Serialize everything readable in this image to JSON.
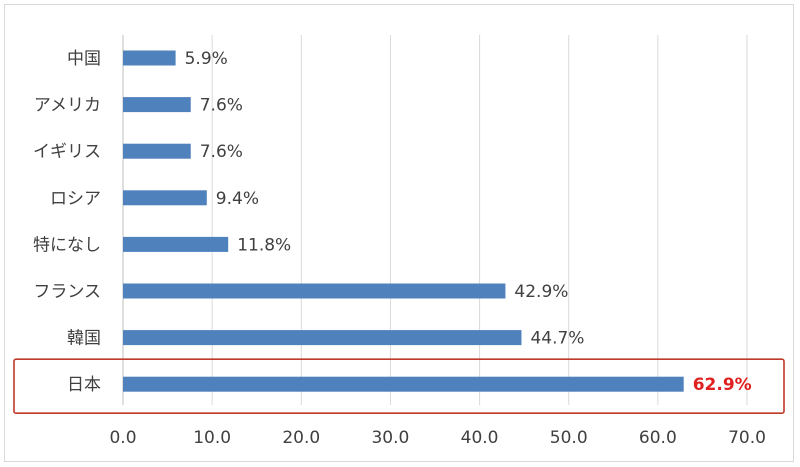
{
  "chart_data": {
    "type": "bar",
    "orientation": "horizontal",
    "categories": [
      "中国",
      "アメリカ",
      "イギリス",
      "ロシア",
      "特になし",
      "フランス",
      "韓国",
      "日本"
    ],
    "values": [
      5.9,
      7.6,
      7.6,
      9.4,
      11.8,
      42.9,
      44.7,
      62.9
    ],
    "value_labels": [
      "5.9%",
      "7.6%",
      "7.6%",
      "9.4%",
      "11.8%",
      "42.9%",
      "44.7%",
      "62.9%"
    ],
    "x_ticks": [
      "0.0",
      "10.0",
      "20.0",
      "30.0",
      "40.0",
      "50.0",
      "60.0",
      "70.0"
    ],
    "xlim": [
      0,
      70
    ],
    "title": "",
    "xlabel": "",
    "ylabel": "",
    "grid": "vertical",
    "legend": "none",
    "highlight": {
      "category": "日本",
      "label_color": "#e02020",
      "box_color": "#c0392b"
    },
    "colors": {
      "bar": "#4f81bd",
      "grid": "#d9d9d9",
      "axis": "#bfbfbf",
      "text": "#404040"
    }
  }
}
